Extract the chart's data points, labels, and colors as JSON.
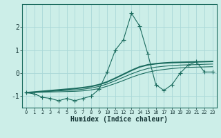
{
  "xlabel": "Humidex (Indice chaleur)",
  "background_color": "#cceee8",
  "line_color": "#1a6b5e",
  "grid_color": "#aad8d8",
  "x": [
    0,
    1,
    2,
    3,
    4,
    5,
    6,
    7,
    8,
    9,
    10,
    11,
    12,
    13,
    14,
    15,
    16,
    17,
    18,
    19,
    20,
    21,
    22,
    23
  ],
  "y_main": [
    -0.85,
    -0.9,
    -1.05,
    -1.1,
    -1.2,
    -1.1,
    -1.2,
    -1.1,
    -1.0,
    -0.7,
    0.05,
    1.0,
    1.45,
    2.6,
    2.05,
    0.85,
    -0.5,
    -0.75,
    -0.5,
    0.0,
    0.35,
    0.5,
    0.05,
    0.05
  ],
  "y_line1": [
    -0.85,
    -0.82,
    -0.79,
    -0.76,
    -0.73,
    -0.7,
    -0.67,
    -0.63,
    -0.58,
    -0.5,
    -0.38,
    -0.22,
    -0.05,
    0.12,
    0.27,
    0.36,
    0.41,
    0.44,
    0.46,
    0.47,
    0.48,
    0.49,
    0.5,
    0.51
  ],
  "y_line2": [
    -0.85,
    -0.84,
    -0.83,
    -0.82,
    -0.81,
    -0.8,
    -0.79,
    -0.77,
    -0.73,
    -0.67,
    -0.57,
    -0.45,
    -0.32,
    -0.18,
    -0.06,
    0.04,
    0.11,
    0.16,
    0.2,
    0.23,
    0.25,
    0.26,
    0.27,
    0.28
  ],
  "y_line3": [
    -0.85,
    -0.83,
    -0.81,
    -0.79,
    -0.77,
    -0.75,
    -0.73,
    -0.7,
    -0.65,
    -0.58,
    -0.47,
    -0.33,
    -0.18,
    -0.03,
    0.1,
    0.2,
    0.26,
    0.3,
    0.33,
    0.35,
    0.36,
    0.37,
    0.385,
    0.395
  ],
  "ylim": [
    -1.5,
    3.0
  ],
  "xlim": [
    -0.5,
    23.5
  ],
  "yticks": [
    -1,
    0,
    1,
    2
  ],
  "xticks": [
    0,
    1,
    2,
    3,
    4,
    5,
    6,
    7,
    8,
    9,
    10,
    11,
    12,
    13,
    14,
    15,
    16,
    17,
    18,
    19,
    20,
    21,
    22,
    23
  ]
}
